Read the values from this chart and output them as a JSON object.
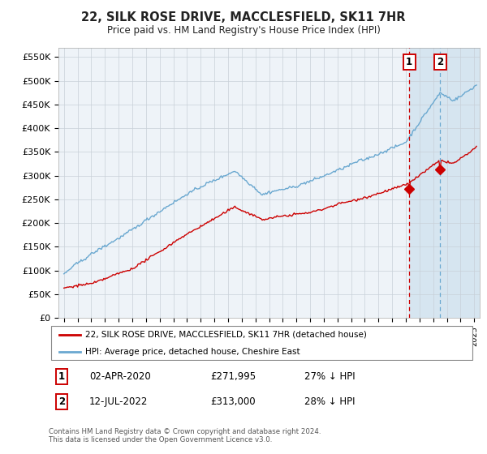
{
  "title": "22, SILK ROSE DRIVE, MACCLESFIELD, SK11 7HR",
  "subtitle": "Price paid vs. HM Land Registry's House Price Index (HPI)",
  "ylabel_ticks": [
    "£0",
    "£50K",
    "£100K",
    "£150K",
    "£200K",
    "£250K",
    "£300K",
    "£350K",
    "£400K",
    "£450K",
    "£500K",
    "£550K"
  ],
  "ytick_values": [
    0,
    50000,
    100000,
    150000,
    200000,
    250000,
    300000,
    350000,
    400000,
    450000,
    500000,
    550000
  ],
  "ylim": [
    0,
    570000
  ],
  "hpi_color": "#6aa8d0",
  "price_color": "#cc0000",
  "t1": 2020.25,
  "t2": 2022.5,
  "marker1_price": 271995,
  "marker2_price": 313000,
  "legend_line1": "22, SILK ROSE DRIVE, MACCLESFIELD, SK11 7HR (detached house)",
  "legend_line2": "HPI: Average price, detached house, Cheshire East",
  "footer": "Contains HM Land Registry data © Crown copyright and database right 2024.\nThis data is licensed under the Open Government Licence v3.0.",
  "background_color": "#ffffff",
  "plot_bg_color": "#eef3f8"
}
